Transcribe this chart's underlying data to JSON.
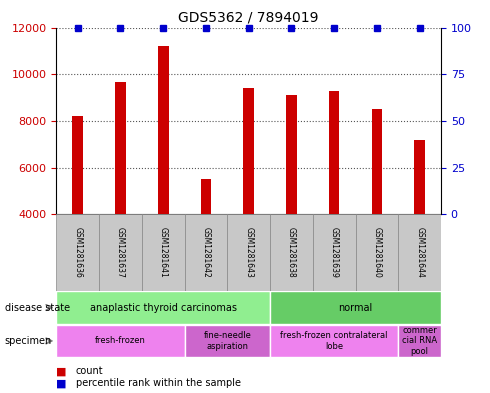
{
  "title": "GDS5362 / 7894019",
  "samples": [
    "GSM1281636",
    "GSM1281637",
    "GSM1281641",
    "GSM1281642",
    "GSM1281643",
    "GSM1281638",
    "GSM1281639",
    "GSM1281640",
    "GSM1281644"
  ],
  "counts": [
    8200,
    9650,
    11200,
    5500,
    9400,
    9100,
    9300,
    8500,
    7200
  ],
  "percentile_values": [
    100,
    100,
    100,
    100,
    100,
    100,
    100,
    100,
    100
  ],
  "ylim_left": [
    4000,
    12000
  ],
  "ylim_right": [
    0,
    100
  ],
  "yticks_left": [
    4000,
    6000,
    8000,
    10000,
    12000
  ],
  "yticks_right": [
    0,
    25,
    50,
    75,
    100
  ],
  "bar_color": "#cc0000",
  "dot_color": "#0000cc",
  "background_color": "#ffffff",
  "sample_box_color": "#c8c8c8",
  "sample_box_edge": "#888888",
  "grid_color": "#555555",
  "tick_label_color_left": "#cc0000",
  "tick_label_color_right": "#0000cc",
  "disease_state_groups": [
    {
      "label": "anaplastic thyroid carcinomas",
      "start": 0,
      "end": 5,
      "color": "#90ee90"
    },
    {
      "label": "normal",
      "start": 5,
      "end": 9,
      "color": "#66cc66"
    }
  ],
  "specimen_groups": [
    {
      "label": "fresh-frozen",
      "start": 0,
      "end": 3,
      "color": "#ee82ee"
    },
    {
      "label": "fine-needle\naspiration",
      "start": 3,
      "end": 5,
      "color": "#cc66cc"
    },
    {
      "label": "fresh-frozen contralateral\nlobe",
      "start": 5,
      "end": 8,
      "color": "#ee82ee"
    },
    {
      "label": "commer\ncial RNA\npool",
      "start": 8,
      "end": 9,
      "color": "#cc66cc"
    }
  ]
}
